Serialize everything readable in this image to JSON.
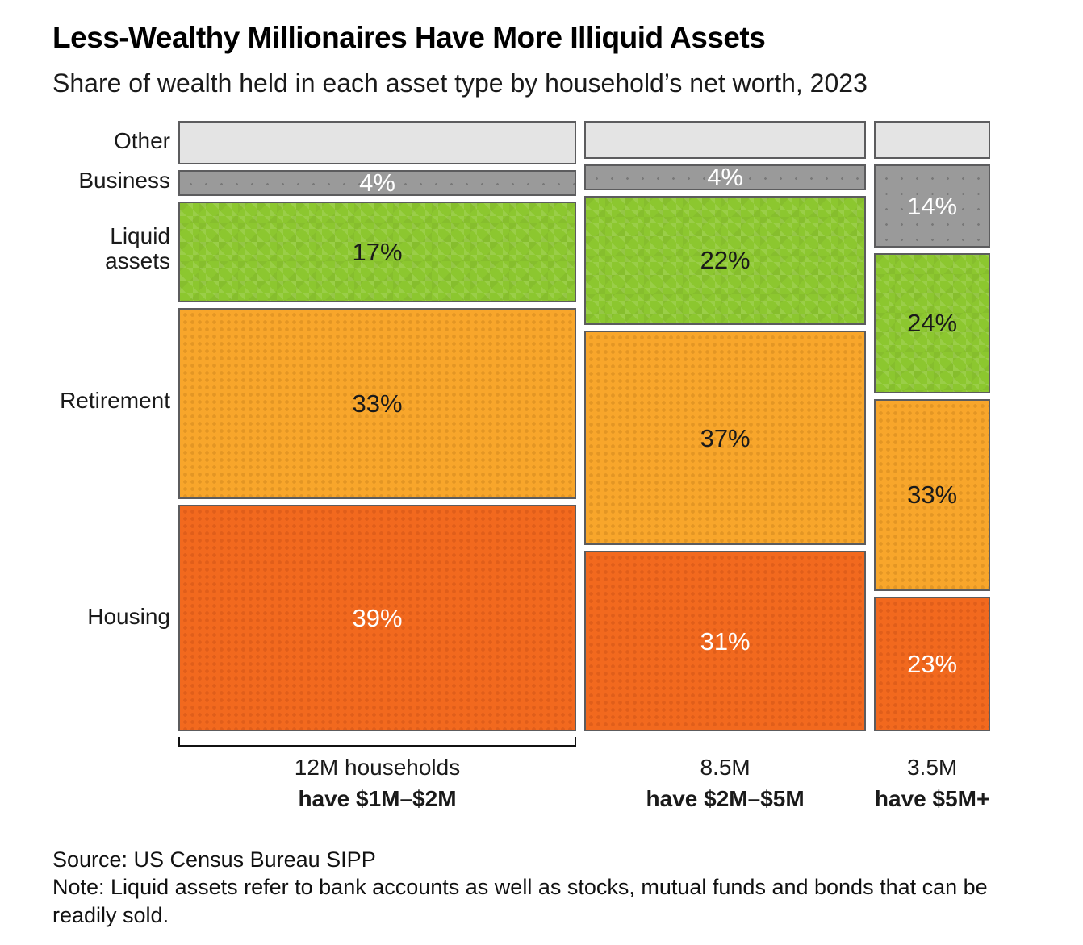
{
  "header": {
    "title": "Less-Wealthy Millionaires Have More Illiquid Assets",
    "subtitle": "Share of wealth held in each asset type by household’s net worth, 2023"
  },
  "footer": {
    "source": "Source: US Census Bureau SIPP",
    "note": "Note: Liquid assets refer to bank accounts as well as stocks, mutual funds and bonds that can be readily sold."
  },
  "chart_data": {
    "type": "mosaic",
    "title": "Less-Wealthy Millionaires Have More Illiquid Assets",
    "subtitle": "Share of wealth held in each asset type by household’s net worth, 2023",
    "unit": "% of wealth",
    "layout_hints": {
      "column_widths_proportional_to": "households (millions)",
      "row_order_top_to_bottom": [
        "other",
        "business",
        "liquid",
        "retirement",
        "housing"
      ],
      "gaps_white": true,
      "legend": "none; rows labeled at left of first column"
    },
    "rows": [
      {
        "key": "other",
        "label": "Other",
        "fill": "#E4E4E4",
        "text_color": "#1a1a1a"
      },
      {
        "key": "business",
        "label": "Business",
        "fill": "#9A9A9A",
        "text_color": "#ffffff"
      },
      {
        "key": "liquid",
        "label": "Liquid assets",
        "fill": "#8CC72F",
        "text_color": "#1a1a1a"
      },
      {
        "key": "retirement",
        "label": "Retirement",
        "fill": "#F8A62B",
        "text_color": "#1a1a1a"
      },
      {
        "key": "housing",
        "label": "Housing",
        "fill": "#F2691E",
        "text_color": "#ffffff"
      }
    ],
    "columns": [
      {
        "name": "$1M–$2M",
        "households_millions": 12,
        "width_weight": 12,
        "bracket": true,
        "caption_line1": "12M households",
        "caption_line2": "have $1M–$2M",
        "values": {
          "other": 7,
          "business": 4,
          "liquid": 17,
          "retirement": 33,
          "housing": 39
        },
        "shown_labels": {
          "business": "4%",
          "liquid": "17%",
          "retirement": "33%",
          "housing": "39%"
        }
      },
      {
        "name": "$2M–$5M",
        "households_millions": 8.5,
        "width_weight": 8.5,
        "bracket": false,
        "caption_line1": "8.5M",
        "caption_line2": "have $2M–$5M",
        "values": {
          "other": 6,
          "business": 4,
          "liquid": 22,
          "retirement": 37,
          "housing": 31
        },
        "shown_labels": {
          "business": "4%",
          "liquid": "22%",
          "retirement": "37%",
          "housing": "31%"
        }
      },
      {
        "name": "$5M+",
        "households_millions": 3.5,
        "width_weight": 3.5,
        "bracket": false,
        "caption_line1": "3.5M",
        "caption_line2": "have $5M+",
        "values": {
          "other": 6,
          "business": 14,
          "liquid": 24,
          "retirement": 33,
          "housing": 23
        },
        "shown_labels": {
          "business": "14%",
          "liquid": "24%",
          "retirement": "33%",
          "housing": "23%"
        }
      }
    ]
  }
}
